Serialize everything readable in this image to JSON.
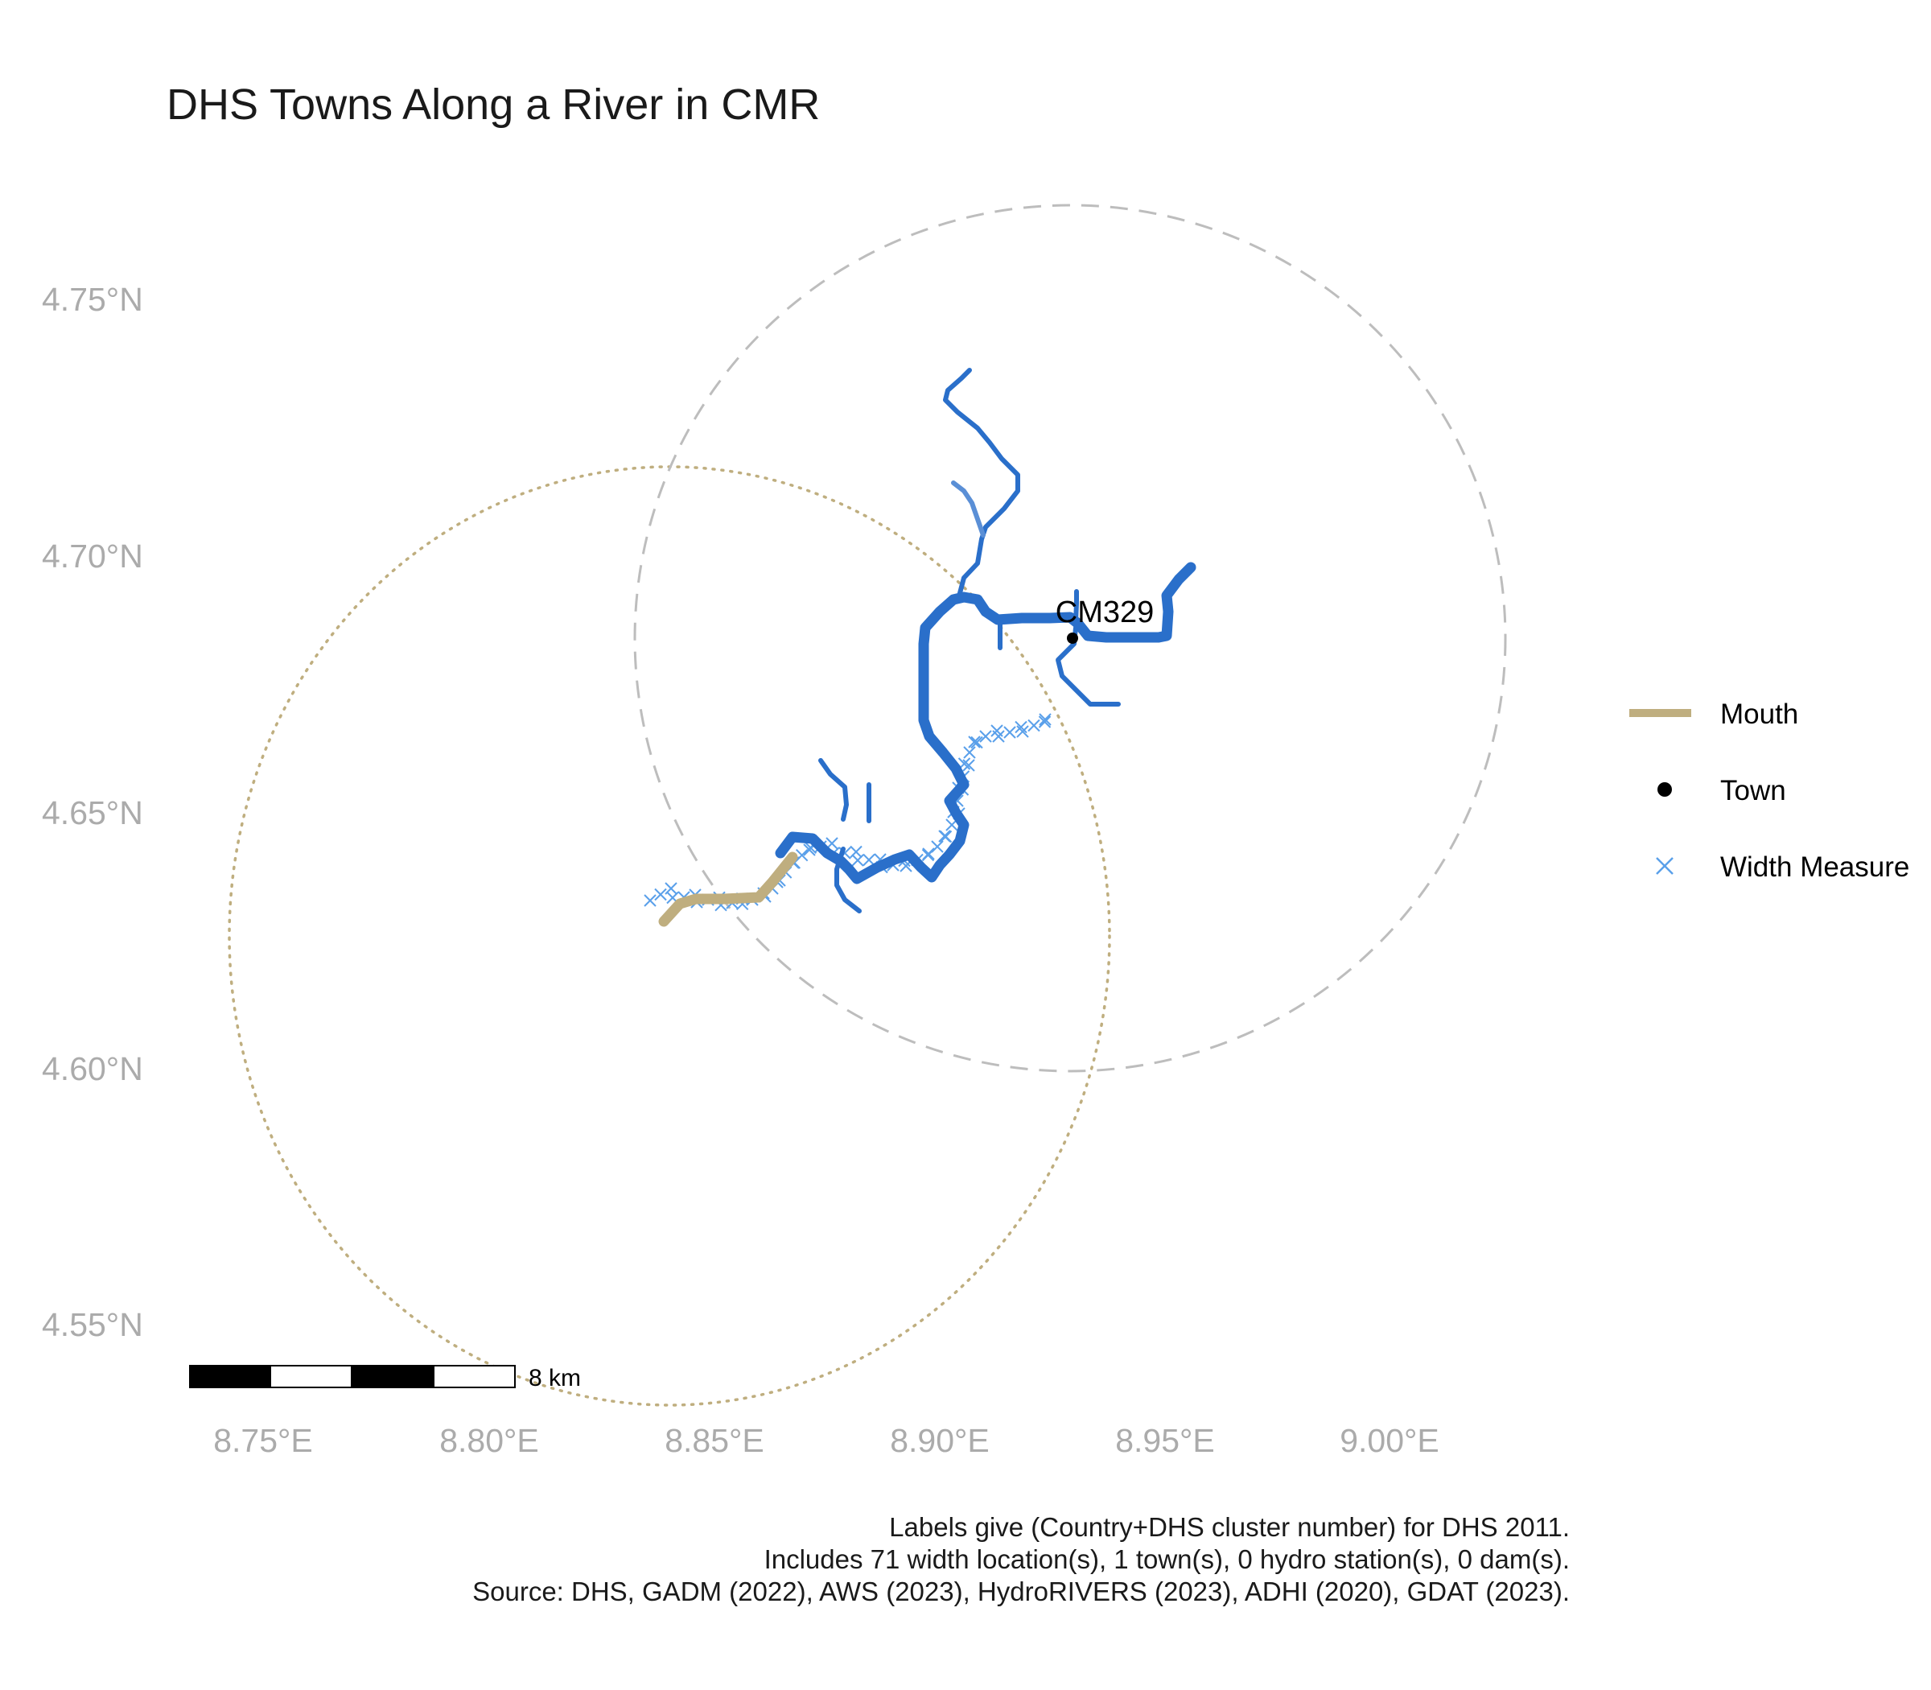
{
  "title": "DHS Towns Along a River in CMR",
  "axes": {
    "y_ticks": [
      "4.75°N",
      "4.70°N",
      "4.65°N",
      "4.60°N",
      "4.55°N"
    ],
    "x_ticks": [
      "8.75°E",
      "8.80°E",
      "8.85°E",
      "8.90°E",
      "8.95°E",
      "9.00°E"
    ]
  },
  "legend": {
    "items": [
      {
        "label": "Mouth",
        "color": "#bfae7f",
        "symbol": "line"
      },
      {
        "label": "Town",
        "color": "#000000",
        "symbol": "dot"
      },
      {
        "label": "Width Measure",
        "color": "#5aa0ea",
        "symbol": "cross"
      }
    ]
  },
  "map": {
    "town": {
      "label": "CM329",
      "lon": 8.929,
      "lat": 4.684
    },
    "colors": {
      "river": "#2a6fca",
      "river_light": "#5a8fd6",
      "mouth": "#bfae7f",
      "width_measure": "#5aa0ea",
      "dashed_circle": "#bdbdbd",
      "dotted_circle": "#bfae7f"
    }
  },
  "scale_bar": {
    "label": "8 km"
  },
  "caption": [
    "Labels give (Country+DHS cluster number) for DHS 2011.",
    "Includes 71 width location(s), 1 town(s), 0 hydro station(s), 0 dam(s).",
    "Source: DHS, GADM (2022), AWS (2023), HydroRIVERS (2023), ADHI (2020), GDAT (2023)."
  ]
}
